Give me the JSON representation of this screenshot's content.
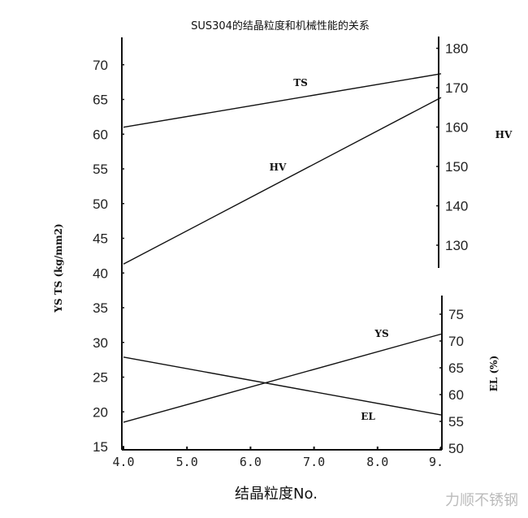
{
  "chart_data": {
    "type": "line",
    "title": "SUS304的结晶粒度和机械性能的关系",
    "xlabel": "结晶粒度No.",
    "ylabel_left": "YS TS (kg/mm2)",
    "ylabel_right_top": "HV",
    "ylabel_right_bottom": "EL (%)",
    "x_ticks": [
      "4.0",
      "5.0",
      "6.0",
      "7.0",
      "8.0",
      "9."
    ],
    "xlim": [
      4,
      9
    ],
    "left_ticks": [
      "70",
      "65",
      "60",
      "55",
      "50",
      "45",
      "40",
      "35",
      "30",
      "25",
      "20",
      "15"
    ],
    "ylim_left": [
      15,
      70
    ],
    "right_top_ticks": [
      "180",
      "170",
      "160",
      "150",
      "140",
      "130"
    ],
    "ylim_right_top": [
      125,
      180
    ],
    "right_bottom_ticks": [
      "75",
      "70",
      "65",
      "60",
      "55",
      "50"
    ],
    "ylim_right_bottom": [
      50,
      78
    ],
    "grid": false,
    "series": [
      {
        "name": "TS",
        "axis": "left",
        "x": [
          4.0,
          9.0
        ],
        "y": [
          61.0,
          68.7
        ]
      },
      {
        "name": "HV",
        "axis": "right_top",
        "x": [
          4.0,
          9.0
        ],
        "y": [
          125.2,
          167.5
        ]
      },
      {
        "name": "YS",
        "axis": "left",
        "x": [
          4.0,
          9.0
        ],
        "y": [
          18.5,
          31.2
        ]
      },
      {
        "name": "EL",
        "axis": "right_bottom",
        "x": [
          4.0,
          9.0
        ],
        "y": [
          67.0,
          56.2
        ]
      }
    ]
  },
  "watermark": "力顺不锈钢"
}
